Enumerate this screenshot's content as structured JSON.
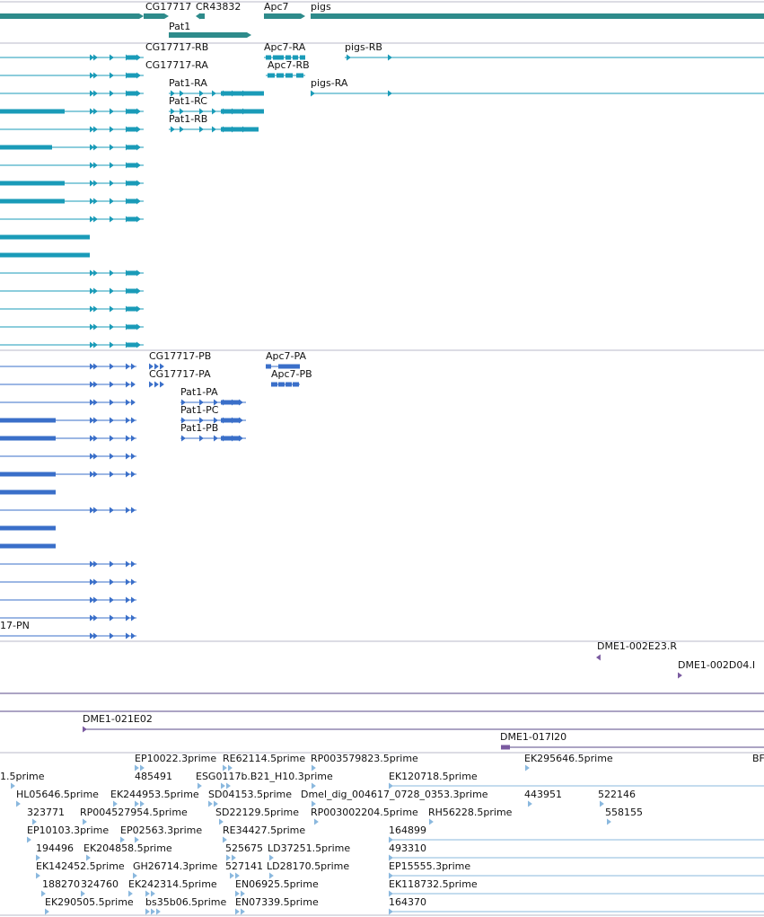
{
  "colors": {
    "gene": "#2e8b8b",
    "mrna": "#1a9bb8",
    "protein": "#3a6fc9",
    "clone": "#7a5aa0",
    "est": "#8ab8de",
    "separator": "#b8b8c8",
    "dark_line": "#5a4a8a"
  },
  "genes": [
    {
      "name": "CG17717",
      "track": "gene"
    },
    {
      "name": "CR43832",
      "track": "gene"
    },
    {
      "name": "Apc7",
      "track": "gene"
    },
    {
      "name": "pigs",
      "track": "gene"
    },
    {
      "name": "Pat1",
      "track": "gene"
    }
  ],
  "transcripts": [
    "CG17717-RB",
    "CG17717-RA",
    "Pat1-RA",
    "Pat1-RC",
    "Pat1-RB",
    "Apc7-RA",
    "Apc7-RB",
    "pigs-RB",
    "pigs-RA"
  ],
  "proteins": [
    "CG17717-PB",
    "CG17717-PA",
    "Pat1-PA",
    "Pat1-PC",
    "Pat1-PB",
    "Apc7-PA",
    "Apc7-PB",
    "17-PN"
  ],
  "clones": [
    "DME1-002E23.R",
    "DME1-002D04.I",
    "DME1-021E02",
    "DME1-017I20"
  ],
  "ests": [
    "EP10022.3prime",
    "RE62114.5prime",
    "RP003579823.5prime",
    "EK295646.5prime",
    "BF",
    "1.5prime",
    "485491",
    "ESG0117b.B21_H10.3prime",
    "EK120718.5prime",
    "HL05646.5prime",
    "EK244953.5prime",
    "SD04153.5prime",
    "Dmel_dig_004617_0728_0353.3prime",
    "443951",
    "522146",
    "323771",
    "RP004527954.5prime",
    "SD22129.5prime",
    "RP003002204.5prime",
    "RH56228.5prime",
    "558155",
    "EP10103.3prime",
    "EP02563.3prime",
    "RE34427.5prime",
    "164899",
    "194496",
    "EK204858.5prime",
    "525675",
    "LD37251.5prime",
    "493310",
    "EK142452.5prime",
    "GH26714.3prime",
    "527141",
    "LD28170.5prime",
    "EP15555.3prime",
    "188270",
    "324760",
    "EK242314.5prime",
    "EN06925.5prime",
    "EK118732.5prime",
    "EK290505.5prime",
    "bs35b06.5prime",
    "EN07339.5prime",
    "164370"
  ]
}
